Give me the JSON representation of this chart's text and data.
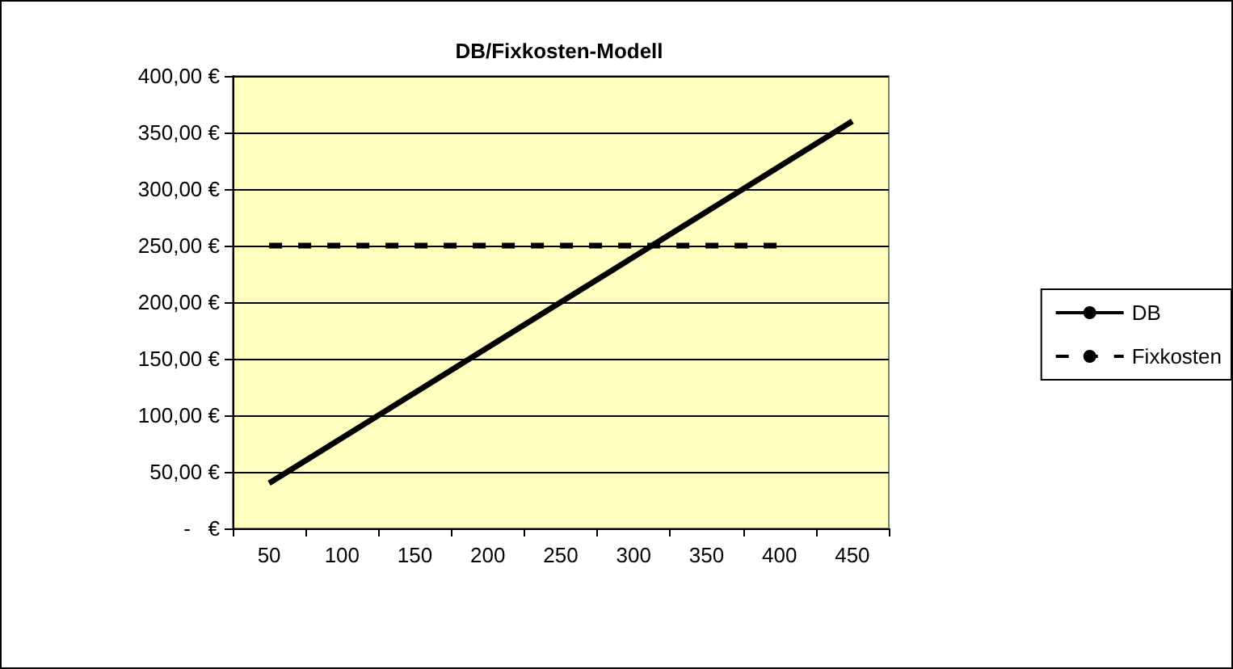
{
  "chart_data": {
    "type": "line",
    "title": "DB/Fixkosten-Modell",
    "categories": [
      "50",
      "100",
      "150",
      "200",
      "250",
      "300",
      "350",
      "400",
      "450"
    ],
    "series": [
      {
        "name": "DB",
        "color": "#000000",
        "line_style": "solid",
        "values": [
          40,
          80,
          120,
          160,
          200,
          240,
          280,
          320,
          360
        ]
      },
      {
        "name": "Fixkosten",
        "color": "#000000",
        "line_style": "dashed",
        "values": [
          250,
          250,
          250,
          250,
          250,
          250,
          250,
          250,
          null
        ]
      }
    ],
    "ylim": [
      0,
      400
    ],
    "yticks": [
      {
        "value": 0,
        "label": "-   €"
      },
      {
        "value": 50,
        "label": "50,00 €"
      },
      {
        "value": 100,
        "label": "100,00 €"
      },
      {
        "value": 150,
        "label": "150,00 €"
      },
      {
        "value": 200,
        "label": "200,00 €"
      },
      {
        "value": 250,
        "label": "250,00 €"
      },
      {
        "value": 300,
        "label": "300,00 €"
      },
      {
        "value": 350,
        "label": "350,00 €"
      },
      {
        "value": 400,
        "label": "400,00 €"
      }
    ],
    "grid": "y",
    "legend": "right",
    "marker": "none"
  }
}
